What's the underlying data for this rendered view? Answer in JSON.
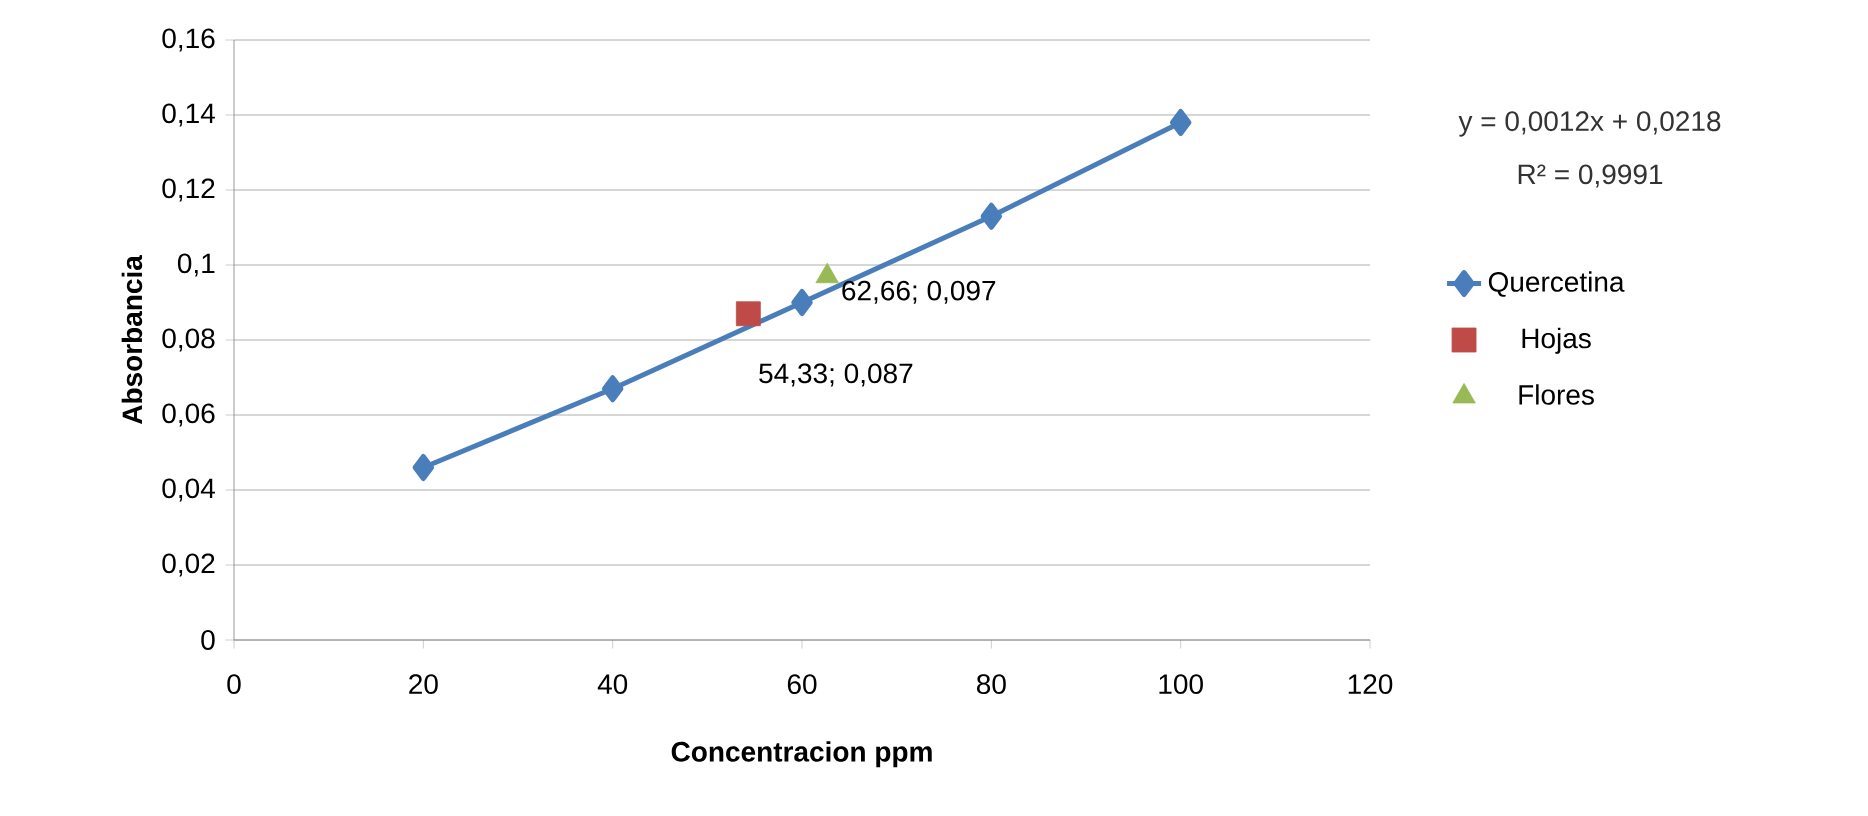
{
  "chart_data": {
    "type": "line",
    "xlabel": "Concentracion ppm",
    "ylabel": "Absorbancia",
    "xlim": [
      0,
      120
    ],
    "xticks": [
      0,
      20,
      40,
      60,
      80,
      100,
      120
    ],
    "ylim": [
      0,
      0.16
    ],
    "yticks": [
      0,
      {
        "value": 0.02,
        "label": "0,02"
      },
      {
        "value": 0.04,
        "label": "0,04"
      },
      {
        "value": 0.06,
        "label": "0,06"
      },
      {
        "value": 0.08,
        "label": "0,08"
      },
      {
        "value": 0.1,
        "label": "0,1"
      },
      {
        "value": 0.12,
        "label": "0,12"
      },
      {
        "value": 0.14,
        "label": "0,14"
      },
      {
        "value": 0.16,
        "label": "0,16"
      }
    ],
    "grid": "y",
    "legend": "right",
    "series": [
      {
        "name": "Quercetina",
        "marker": "diamond",
        "color": "#4a7ebb",
        "x": [
          20,
          40,
          60,
          80,
          100
        ],
        "values": [
          0.046,
          0.067,
          0.09,
          0.113,
          0.138
        ]
      },
      {
        "name": "Hojas",
        "type": "scatter",
        "marker": "square",
        "color": "#be4b48",
        "x": [
          54.33
        ],
        "values": [
          0.087
        ]
      },
      {
        "name": "Flores",
        "type": "scatter",
        "marker": "triangle",
        "color": "#98b954",
        "x": [
          62.66
        ],
        "values": [
          0.097
        ]
      }
    ],
    "annotations": [
      "y = 0,0012x + 0,0218",
      "R² = 0,9991",
      {
        "text": "62,66; 0,097",
        "x": 62.66,
        "y": 0.097
      },
      {
        "text": "54,33; 0,087",
        "x": 54.33,
        "y": 0.087
      }
    ]
  }
}
